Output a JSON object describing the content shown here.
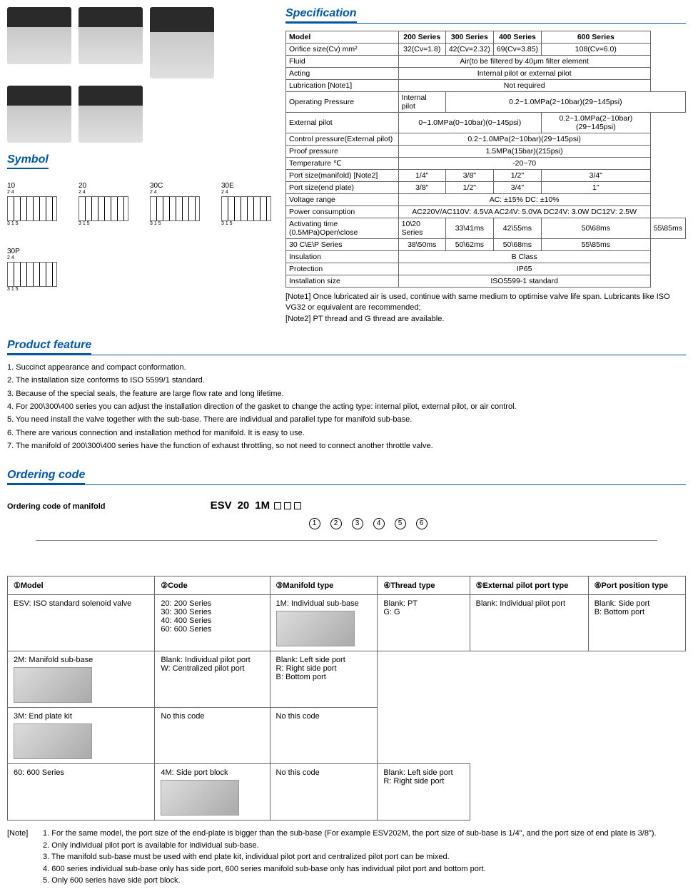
{
  "spec_title": "Specification",
  "symbol_title": "Symbol",
  "feature_title": "Product feature",
  "ordering_title": "Ordering code",
  "ordering_sub": "Ordering code of manifold",
  "symbols": [
    "10",
    "20",
    "30C",
    "30E",
    "30P"
  ],
  "spec": {
    "headers": [
      "Model",
      "200 Series",
      "300 Series",
      "400 Series",
      "600 Series"
    ],
    "rows": [
      {
        "label": "Orifice size(Cv)  mm²",
        "c": [
          "32(Cv=1.8)",
          "42(Cv=2.32)",
          "69(Cv=3.85)",
          "108(Cv=6.0)"
        ]
      },
      {
        "label": "Fluid",
        "span": "Air(to be filtered by 40μm filter element"
      },
      {
        "label": "Acting",
        "span": "Internal pilot or external pilot"
      },
      {
        "label": "Lubrication [Note1]",
        "span": "Not required"
      },
      {
        "label": "Operating Pressure",
        "sub1": "Internal pilot",
        "sub1v": "0.2~1.0MPa(2~10bar)(29~145psi)",
        "sub2": "External pilot",
        "sub2c": [
          "0~1.0MPa(0~10bar)(0~145psi)",
          "0.2~1.0MPa(2~10bar)(29~145psi)"
        ],
        "sub2colspan": [
          3,
          1
        ]
      },
      {
        "label": "Control pressure(External pilot)",
        "span": "0.2~1.0MPa(2~10bar)(29~145psi)"
      },
      {
        "label": "Proof pressure",
        "span": "1.5MPa(15bar)(215psi)"
      },
      {
        "label": "Temperature ℃",
        "span": "-20~70"
      },
      {
        "label": "Port size(manifold)  [Note2]",
        "c": [
          "1/4\"",
          "3/8\"",
          "1/2\"",
          "3/4\""
        ]
      },
      {
        "label": "Port size(end plate)",
        "c": [
          "3/8\"",
          "1/2\"",
          "3/4\"",
          "1\""
        ]
      },
      {
        "label": "Voltage range",
        "span": "AC: ±15%    DC: ±10%"
      },
      {
        "label": "Power consumption",
        "span": "AC220V/AC110V: 4.5VA   AC24V: 5.0VA   DC24V: 3.0W  DC12V: 2.5W"
      },
      {
        "label": "Activating time (0.5MPa)Open\\close",
        "sub1": "10\\20  Series",
        "sub1c": [
          "33\\41ms",
          "42\\55ms",
          "50\\68ms",
          "55\\85ms"
        ],
        "sub2": "30 C\\E\\P Series",
        "sub2c4": [
          "38\\50ms",
          "50\\62ms",
          "50\\68ms",
          "55\\85ms"
        ]
      },
      {
        "label": "Insulation",
        "span": "B Class"
      },
      {
        "label": "Protection",
        "span": "IP65"
      },
      {
        "label": "Installation size",
        "span": "ISO5599-1 standard"
      }
    ]
  },
  "spec_notes": [
    "[Note1]  Once lubricated air is used, continue with same medium to optimise valve life span. Lubricants like ISO VG32 or equivalent are recommended;",
    "[Note2]  PT thread and G thread are available."
  ],
  "features": [
    "1. Succinct appearance and compact conformation.",
    "2. The installation size conforms to ISO 5599/1 standard.",
    "3. Because of the special seals,  the feature are large flow rate and long lifetime.",
    "4. For 200\\300\\400 series you can adjust the installation direction of the gasket to change the acting type: internal pilot, external pilot, or air control.",
    "5. You need install the valve together with the sub-base. There are individual and parallel type for manifold sub-base.",
    "6. There are various connection and installation method for manifold. It is  easy to use.",
    "7. The manifold of 200\\300\\400 series have the function of exhaust throttling, so not need to connect another throttle valve."
  ],
  "order_code": {
    "prefix": "ESV",
    "parts": [
      "20",
      "1M"
    ],
    "blanks": 3
  },
  "order_headers": [
    "①Model",
    "②Code",
    "③Manifold type",
    "④Thread type",
    "⑤External pilot port type",
    "⑥Port position type"
  ],
  "order_rows": [
    {
      "model": "ESV: ISO standard solenoid valve",
      "code": "20: 200 Series\n30: 300 Series\n40: 400 Series\n60: 600 Series",
      "manifold": "1M: Individual sub-base",
      "thread": "Blank: PT\nG: G",
      "pilot": "Blank: Individual pilot port",
      "port": "Blank: Side port\nB: Bottom port"
    },
    {
      "manifold": "2M: Manifold sub-base",
      "pilot": "Blank: Individual pilot port\nW: Centralized pilot port",
      "port": "Blank: Left side port\nR: Right side port\nB: Bottom port"
    },
    {
      "manifold": "3M: End plate kit",
      "pilot": "No this code",
      "port": "No this code"
    },
    {
      "code": "60: 600 Series",
      "manifold": "4M: Side port block",
      "pilot": "No this code",
      "port": "Blank: Left side port\nR: Right side port"
    }
  ],
  "order_notes_label": "[Note]",
  "order_notes": [
    "1. For the same model, the port size of the end-plate is bigger than the sub-base (For example ESV202M, the port size of sub-base is 1/4\", and the port size of end plate is 3/8\").",
    "2. Only individual pilot port is available for individual sub-base.",
    "3. The manifold sub-base must be used with end plate kit, individual pilot port and centralized pilot port can be mixed.",
    "4. 600 series individual sub-base only has side port, 600 series manifold sub-base only has individual pilot port and bottom port.",
    "5. Only 600 series have side port block."
  ]
}
